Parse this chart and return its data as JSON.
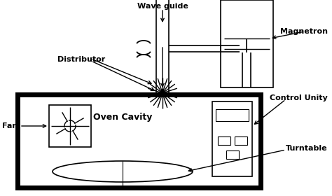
{
  "bg_color": "#ffffff",
  "line_color": "#000000",
  "labels": {
    "wave_guide": "Wave guide",
    "magnetron": "Magnetron",
    "distributor": "Distributor",
    "fan": "Fan",
    "oven_cavity": "Oven Cavity",
    "control_unity": "Control Unity",
    "turntable": "Turntable"
  },
  "figsize": [
    4.74,
    2.8
  ],
  "dpi": 100
}
